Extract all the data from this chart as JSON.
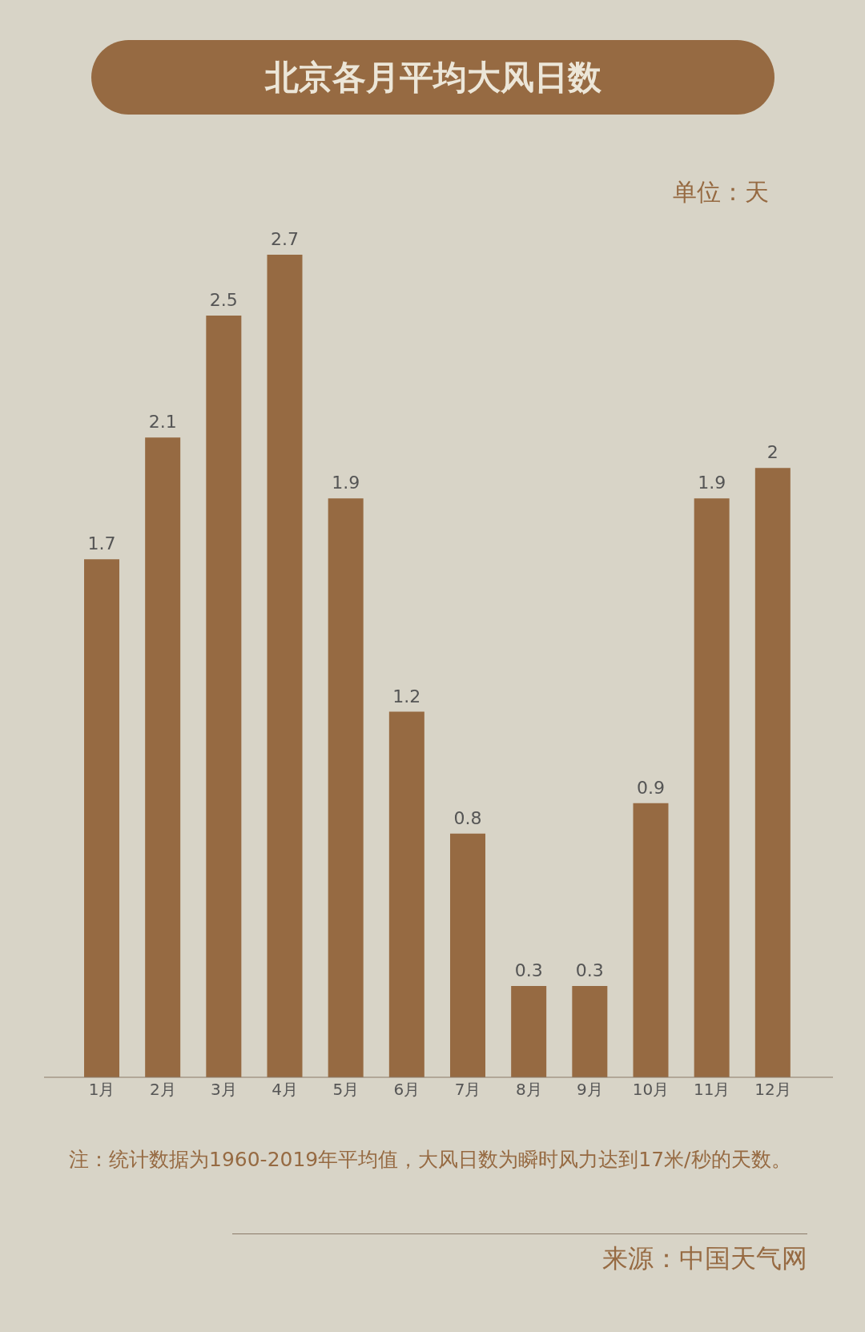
{
  "chart_data": {
    "type": "bar",
    "title": "北京各月平均大风日数",
    "categories": [
      "1月",
      "2月",
      "3月",
      "4月",
      "5月",
      "6月",
      "7月",
      "8月",
      "9月",
      "10月",
      "11月",
      "12月"
    ],
    "values": [
      1.7,
      2.1,
      2.5,
      2.7,
      1.9,
      1.2,
      0.8,
      0.3,
      0.3,
      0.9,
      1.9,
      2
    ],
    "color": "#966a42",
    "data_labels": true,
    "annotations": [
      "单位：天",
      "注：统计数据为1960-2019年平均值，大风日数为瞬时风力达到17米/秒的天数。",
      "来源：中国天气网"
    ]
  }
}
